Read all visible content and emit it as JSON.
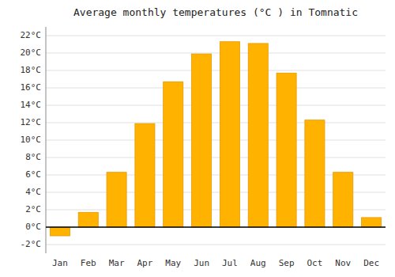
{
  "chart_data": {
    "type": "bar",
    "title": "Average monthly temperatures (°C ) in Tomnatic",
    "categories": [
      "Jan",
      "Feb",
      "Mar",
      "Apr",
      "May",
      "Jun",
      "Jul",
      "Aug",
      "Sep",
      "Oct",
      "Nov",
      "Dec"
    ],
    "values": [
      -1.0,
      1.7,
      6.3,
      11.9,
      16.7,
      19.9,
      21.3,
      21.1,
      17.7,
      12.3,
      6.3,
      1.1
    ],
    "color": "#FFB300",
    "ylim": [
      -3,
      23
    ],
    "yticks": [
      {
        "value": -2,
        "label": "-2°C"
      },
      {
        "value": 0,
        "label": "0°C"
      },
      {
        "value": 2,
        "label": "2°C"
      },
      {
        "value": 4,
        "label": "4°C"
      },
      {
        "value": 6,
        "label": "6°C"
      },
      {
        "value": 8,
        "label": "8°C"
      },
      {
        "value": 10,
        "label": "10°C"
      },
      {
        "value": 12,
        "label": "12°C"
      },
      {
        "value": 14,
        "label": "14°C"
      },
      {
        "value": 16,
        "label": "16°C"
      },
      {
        "value": 18,
        "label": "18°C"
      },
      {
        "value": 20,
        "label": "20°C"
      },
      {
        "value": 22,
        "label": "22°C"
      }
    ],
    "grid": true
  }
}
